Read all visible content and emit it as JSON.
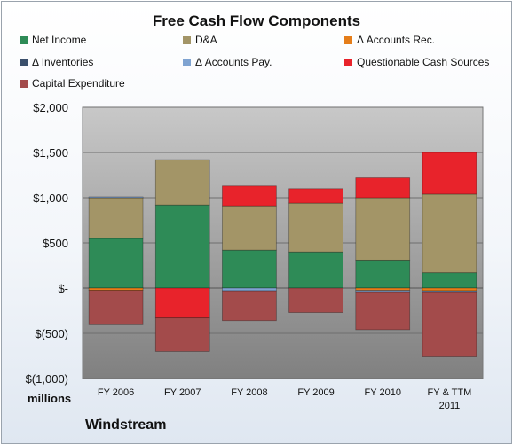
{
  "chart_data": {
    "type": "bar",
    "stacked": true,
    "title": "Free Cash Flow Components",
    "categories": [
      "FY 2006",
      "FY 2007",
      "FY 2008",
      "FY 2009",
      "FY 2010",
      "FY & TTM 2011"
    ],
    "ylim": [
      -1000,
      2000
    ],
    "yticks": [
      2000,
      1500,
      1000,
      500,
      0,
      -500,
      -1000
    ],
    "ytick_labels": [
      "$2,000",
      "$1,500",
      "$1,000",
      "$500",
      "$-",
      "$(500)",
      "$(1,000)"
    ],
    "ylabel": "millions",
    "legend_placement": "top",
    "grid": true,
    "series": [
      {
        "name": "Net Income",
        "color": "#2e8b57",
        "values": [
          550,
          920,
          420,
          400,
          310,
          170
        ]
      },
      {
        "name": "D&A",
        "color": "#a39567",
        "values": [
          450,
          500,
          490,
          540,
          690,
          870
        ]
      },
      {
        "name": "Δ Accounts Rec.",
        "color": "#e57e1a",
        "values": [
          -25,
          0,
          0,
          0,
          -25,
          -30
        ]
      },
      {
        "name": "Δ Inventories",
        "color": "#3a4f6b",
        "values": [
          0,
          0,
          0,
          0,
          0,
          0
        ]
      },
      {
        "name": "Δ Accounts Pay.",
        "color": "#7fa3d1",
        "values": [
          10,
          0,
          -30,
          0,
          -15,
          -10
        ]
      },
      {
        "name": "Questionable Cash Sources",
        "color": "#e8232b",
        "values": [
          0,
          -330,
          220,
          160,
          220,
          460
        ]
      },
      {
        "name": "Capital Expenditure",
        "color": "#a34b4b",
        "values": [
          -380,
          -370,
          -330,
          -270,
          -420,
          -720
        ]
      }
    ]
  },
  "footer": {
    "company": "Windstream"
  }
}
